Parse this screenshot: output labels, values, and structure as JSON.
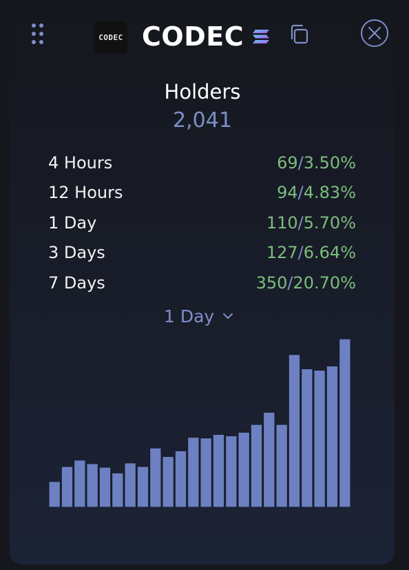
{
  "header": {
    "logo_text": "CODEC",
    "token_name": "CODEC",
    "icons": {
      "drag": "drag-handle-icon",
      "chain": "solana-icon",
      "copy": "copy-icon",
      "close": "close-icon"
    }
  },
  "holders": {
    "title": "Holders",
    "total": "2,041"
  },
  "stats": [
    {
      "label": "4 Hours",
      "count": "69",
      "separator": "/",
      "percent": "3.50%"
    },
    {
      "label": "12 Hours",
      "count": "94",
      "separator": "/",
      "percent": "4.83%"
    },
    {
      "label": "1 Day",
      "count": "110",
      "separator": "/",
      "percent": "5.70%"
    },
    {
      "label": "3 Days",
      "count": "127",
      "separator": "/",
      "percent": "6.64%"
    },
    {
      "label": "7 Days",
      "count": "350",
      "separator": "/",
      "percent": "20.70%"
    }
  ],
  "period_select": {
    "selected": "1 Day"
  },
  "colors": {
    "accent": "#7d8fc8",
    "positive": "#7cbd7e",
    "bar_fill": "#6d81c2",
    "bar_stroke": "#161b2a"
  },
  "chart_data": {
    "type": "bar",
    "values": [
      36,
      57,
      66,
      61,
      56,
      48,
      62,
      57,
      83,
      71,
      79,
      98,
      97,
      102,
      100,
      105,
      116,
      133,
      116,
      214,
      194,
      192,
      198,
      236
    ],
    "ylim": [
      0,
      240
    ],
    "grid": false,
    "xlabel": "",
    "ylabel": ""
  }
}
